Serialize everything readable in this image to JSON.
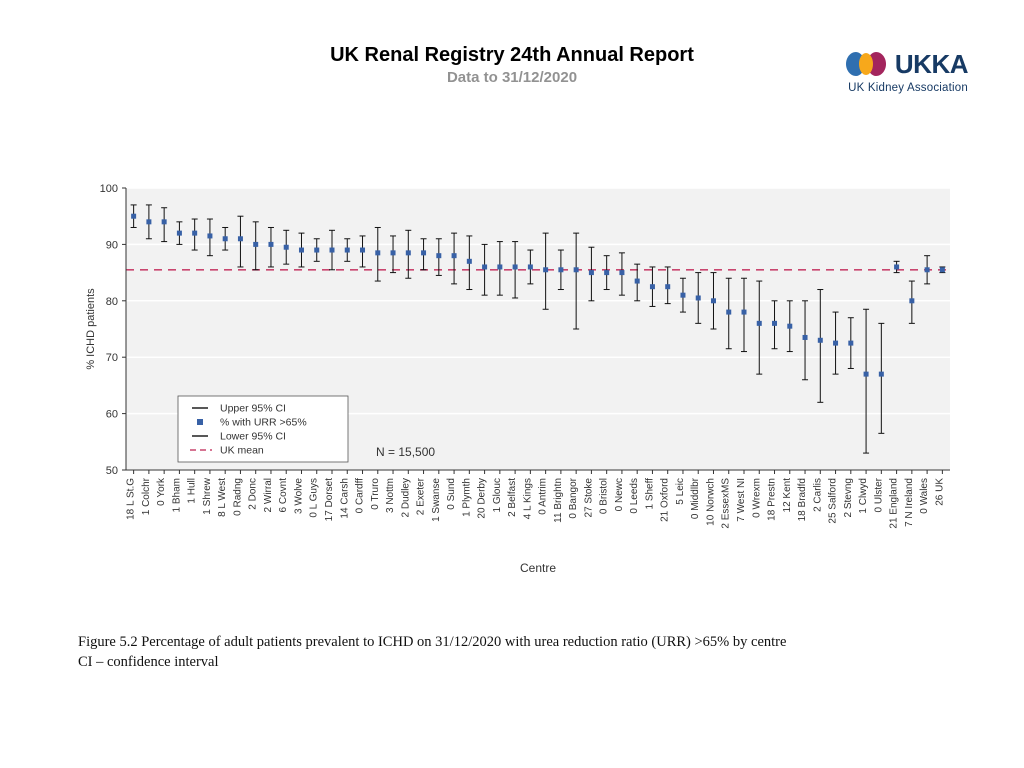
{
  "header": {
    "title": "UK Renal Registry 24th Annual Report",
    "subtitle": "Data to 31/12/2020"
  },
  "logo": {
    "text": "UKKA",
    "tagline": "UK Kidney Association",
    "colors": {
      "blue": "#2f6fb0",
      "orange": "#f7a81b",
      "maroon": "#a3255d",
      "navy": "#173a64"
    }
  },
  "caption": {
    "line1": "Figure 5.2 Percentage of adult patients prevalent to ICHD on 31/12/2020 with urea reduction ratio (URR) >65% by centre",
    "line2": "CI – confidence interval"
  },
  "chart": {
    "type": "errorbar",
    "plot_bg": "#f2f2f2",
    "grid_color": "#ffffff",
    "axis_color": "#333333",
    "tick_color": "#333333",
    "marker_color": "#3861a6",
    "marker_size": 5,
    "error_color": "#111111",
    "error_width": 1,
    "error_cap": 6,
    "ukmean_color": "#c9466f",
    "ukmean_dash": "8,6",
    "ukmean_value": 85.5,
    "ylabel": "% ICHD patients",
    "xlabel": "Centre",
    "ylabel_fontsize": 11,
    "xlabel_fontsize": 12,
    "tick_fontsize": 11,
    "xlabels_fontsize": 10,
    "ylim": [
      50,
      100
    ],
    "ytick_step": 10,
    "n_annotation": "N = 15,500",
    "legend": {
      "bg": "#ffffff",
      "border": "#555555",
      "items": [
        {
          "type": "cap",
          "label": "Upper 95% CI"
        },
        {
          "type": "marker",
          "label": "% with URR >65%"
        },
        {
          "type": "cap",
          "label": "Lower 95% CI"
        },
        {
          "type": "dash",
          "label": "UK mean"
        }
      ]
    },
    "centres": [
      {
        "label": "18 L St.G",
        "pct": 95.0,
        "lo": 93.0,
        "hi": 97.0
      },
      {
        "label": "1 Colchr",
        "pct": 94.0,
        "lo": 91.0,
        "hi": 97.0
      },
      {
        "label": "0 York",
        "pct": 94.0,
        "lo": 90.5,
        "hi": 96.5
      },
      {
        "label": "1 Bham",
        "pct": 92.0,
        "lo": 90.0,
        "hi": 94.0
      },
      {
        "label": "1 Hull",
        "pct": 92.0,
        "lo": 89.0,
        "hi": 94.5
      },
      {
        "label": "1 Shrew",
        "pct": 91.5,
        "lo": 88.0,
        "hi": 94.5
      },
      {
        "label": "8 L West",
        "pct": 91.0,
        "lo": 89.0,
        "hi": 93.0
      },
      {
        "label": "0 Radng",
        "pct": 91.0,
        "lo": 86.0,
        "hi": 95.0
      },
      {
        "label": "2 Donc",
        "pct": 90.0,
        "lo": 85.5,
        "hi": 94.0
      },
      {
        "label": "2 Wirral",
        "pct": 90.0,
        "lo": 86.0,
        "hi": 93.0
      },
      {
        "label": "6 Covnt",
        "pct": 89.5,
        "lo": 86.5,
        "hi": 92.5
      },
      {
        "label": "3 Wolve",
        "pct": 89.0,
        "lo": 86.0,
        "hi": 92.0
      },
      {
        "label": "0 L Guys",
        "pct": 89.0,
        "lo": 87.0,
        "hi": 91.0
      },
      {
        "label": "17 Dorset",
        "pct": 89.0,
        "lo": 85.5,
        "hi": 92.5
      },
      {
        "label": "14 Carsh",
        "pct": 89.0,
        "lo": 87.0,
        "hi": 91.0
      },
      {
        "label": "0 Cardff",
        "pct": 89.0,
        "lo": 86.0,
        "hi": 91.5
      },
      {
        "label": "0 Truro",
        "pct": 88.5,
        "lo": 83.5,
        "hi": 93.0
      },
      {
        "label": "3 Nottm",
        "pct": 88.5,
        "lo": 85.0,
        "hi": 91.5
      },
      {
        "label": "2 Dudley",
        "pct": 88.5,
        "lo": 84.0,
        "hi": 92.5
      },
      {
        "label": "2 Exeter",
        "pct": 88.5,
        "lo": 85.5,
        "hi": 91.0
      },
      {
        "label": "1 Swanse",
        "pct": 88.0,
        "lo": 84.5,
        "hi": 91.0
      },
      {
        "label": "0 Sund",
        "pct": 88.0,
        "lo": 83.0,
        "hi": 92.0
      },
      {
        "label": "1 Plymth",
        "pct": 87.0,
        "lo": 82.0,
        "hi": 91.5
      },
      {
        "label": "20 Derby",
        "pct": 86.0,
        "lo": 81.0,
        "hi": 90.0
      },
      {
        "label": "1 Glouc",
        "pct": 86.0,
        "lo": 81.0,
        "hi": 90.5
      },
      {
        "label": "2 Belfast",
        "pct": 86.0,
        "lo": 80.5,
        "hi": 90.5
      },
      {
        "label": "4 L Kings",
        "pct": 86.0,
        "lo": 83.0,
        "hi": 89.0
      },
      {
        "label": "0 Antrim",
        "pct": 85.5,
        "lo": 78.5,
        "hi": 92.0
      },
      {
        "label": "11 Brightn",
        "pct": 85.5,
        "lo": 82.0,
        "hi": 89.0
      },
      {
        "label": "0 Bangor",
        "pct": 85.5,
        "lo": 75.0,
        "hi": 92.0
      },
      {
        "label": "27 Stoke",
        "pct": 85.0,
        "lo": 80.0,
        "hi": 89.5
      },
      {
        "label": "0 Bristol",
        "pct": 85.0,
        "lo": 82.0,
        "hi": 88.0
      },
      {
        "label": "0 Newc",
        "pct": 85.0,
        "lo": 81.0,
        "hi": 88.5
      },
      {
        "label": "0 Leeds",
        "pct": 83.5,
        "lo": 80.0,
        "hi": 86.5
      },
      {
        "label": "1 Sheff",
        "pct": 82.5,
        "lo": 79.0,
        "hi": 86.0
      },
      {
        "label": "21 Oxford",
        "pct": 82.5,
        "lo": 79.5,
        "hi": 86.0
      },
      {
        "label": "5 Leic",
        "pct": 81.0,
        "lo": 78.0,
        "hi": 84.0
      },
      {
        "label": "0 Middlbr",
        "pct": 80.5,
        "lo": 76.0,
        "hi": 85.0
      },
      {
        "label": "10 Norwch",
        "pct": 80.0,
        "lo": 75.0,
        "hi": 85.0
      },
      {
        "label": "2 EssexMS",
        "pct": 78.0,
        "lo": 71.5,
        "hi": 84.0
      },
      {
        "label": "7 West NI",
        "pct": 78.0,
        "lo": 71.0,
        "hi": 84.0
      },
      {
        "label": "0 Wrexm",
        "pct": 76.0,
        "lo": 67.0,
        "hi": 83.5
      },
      {
        "label": "18 Prestn",
        "pct": 76.0,
        "lo": 71.5,
        "hi": 80.0
      },
      {
        "label": "12 Kent",
        "pct": 75.5,
        "lo": 71.0,
        "hi": 80.0
      },
      {
        "label": "18 Bradfd",
        "pct": 73.5,
        "lo": 66.0,
        "hi": 80.0
      },
      {
        "label": "2 Carlis",
        "pct": 73.0,
        "lo": 62.0,
        "hi": 82.0
      },
      {
        "label": "25 Salford",
        "pct": 72.5,
        "lo": 67.0,
        "hi": 78.0
      },
      {
        "label": "2 Stevng",
        "pct": 72.5,
        "lo": 68.0,
        "hi": 77.0
      },
      {
        "label": "1 Clwyd",
        "pct": 67.0,
        "lo": 53.0,
        "hi": 78.5
      },
      {
        "label": "0 Ulster",
        "pct": 67.0,
        "lo": 56.5,
        "hi": 76.0
      },
      {
        "label": "21 England",
        "pct": 86.0,
        "lo": 85.0,
        "hi": 87.0
      },
      {
        "label": "7 N Ireland",
        "pct": 80.0,
        "lo": 76.0,
        "hi": 83.5
      },
      {
        "label": "0 Wales",
        "pct": 85.5,
        "lo": 83.0,
        "hi": 88.0
      },
      {
        "label": "26 UK",
        "pct": 85.5,
        "lo": 85.0,
        "hi": 86.0
      }
    ]
  }
}
